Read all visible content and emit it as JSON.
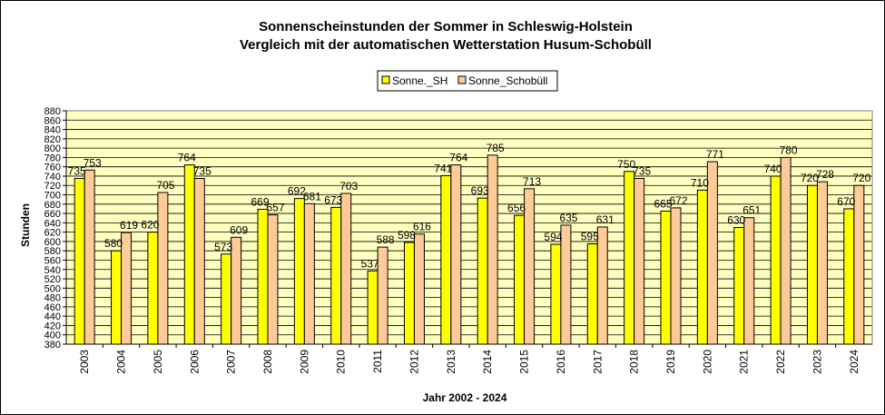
{
  "colors": {
    "plot_background": "#FFFFC0",
    "series_sh": "#FFFF00",
    "series_schobuell": "#FFCC99",
    "gridline": "#000000"
  },
  "chart_data": {
    "type": "bar",
    "title": "Sonnenscheinstunden der Sommer in Schleswig-Holstein",
    "subtitle": "Vergleich mit der automatischen Wetterstation Husum-Schobüll",
    "xlabel": "Jahr 2002 - 2024",
    "ylabel": "Stunden",
    "ylim": [
      380,
      880
    ],
    "ytick_step": 20,
    "grid": true,
    "legend_position": "top-center",
    "categories": [
      "2003",
      "2004",
      "2005",
      "2006",
      "2007",
      "2008",
      "2009",
      "2010",
      "2011",
      "2012",
      "2013",
      "2014",
      "2015",
      "2016",
      "2017",
      "2018",
      "2019",
      "2020",
      "2021",
      "2022",
      "2023",
      "2024"
    ],
    "series": [
      {
        "name": "Sonne._SH",
        "values": [
          735,
          580,
          620,
          764,
          573,
          669,
          692,
          673,
          537,
          598,
          741,
          693,
          656,
          594,
          595,
          750,
          665,
          710,
          630,
          740,
          720,
          670
        ]
      },
      {
        "name": "Sonne_Schobüll",
        "values": [
          753,
          619,
          705,
          735,
          609,
          657,
          681,
          703,
          588,
          616,
          764,
          785,
          713,
          635,
          631,
          735,
          672,
          771,
          651,
          780,
          728,
          720
        ]
      }
    ]
  }
}
